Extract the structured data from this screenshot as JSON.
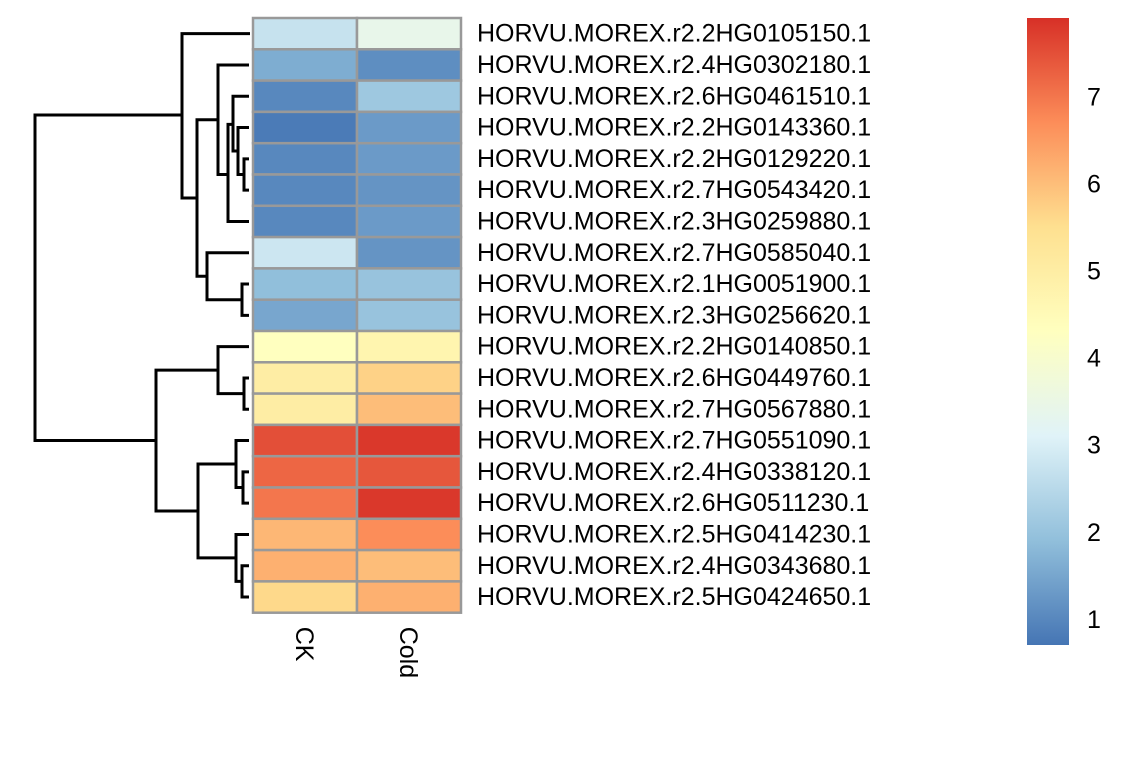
{
  "chart_data": {
    "type": "heatmap",
    "title": "",
    "columns": [
      "CK",
      "Cold"
    ],
    "rows": [
      "HORVU.MOREX.r2.2HG0105150.1",
      "HORVU.MOREX.r2.4HG0302180.1",
      "HORVU.MOREX.r2.6HG0461510.1",
      "HORVU.MOREX.r2.2HG0143360.1",
      "HORVU.MOREX.r2.2HG0129220.1",
      "HORVU.MOREX.r2.7HG0543420.1",
      "HORVU.MOREX.r2.3HG0259880.1",
      "HORVU.MOREX.r2.7HG0585040.1",
      "HORVU.MOREX.r2.1HG0051900.1",
      "HORVU.MOREX.r2.3HG0256620.1",
      "HORVU.MOREX.r2.2HG0140850.1",
      "HORVU.MOREX.r2.6HG0449760.1",
      "HORVU.MOREX.r2.7HG0567880.1",
      "HORVU.MOREX.r2.7HG0551090.1",
      "HORVU.MOREX.r2.4HG0338120.1",
      "HORVU.MOREX.r2.6HG0511230.1",
      "HORVU.MOREX.r2.5HG0414230.1",
      "HORVU.MOREX.r2.4HG0343680.1",
      "HORVU.MOREX.r2.5HG0424650.1"
    ],
    "values": [
      [
        2.7,
        3.4
      ],
      [
        1.6,
        1.1
      ],
      [
        1.0,
        2.1
      ],
      [
        0.8,
        1.3
      ],
      [
        1.0,
        1.3
      ],
      [
        1.0,
        1.2
      ],
      [
        1.0,
        1.3
      ],
      [
        2.8,
        1.2
      ],
      [
        1.9,
        2.0
      ],
      [
        1.5,
        2.0
      ],
      [
        4.3,
        4.7
      ],
      [
        5.0,
        5.7
      ],
      [
        5.0,
        6.0
      ],
      [
        7.5,
        7.8
      ],
      [
        7.2,
        7.4
      ],
      [
        7.0,
        7.8
      ],
      [
        6.1,
        6.7
      ],
      [
        6.2,
        6.0
      ],
      [
        5.6,
        6.2
      ]
    ],
    "color_scale": {
      "min": 0.7,
      "max": 7.9,
      "ticks": [
        1,
        2,
        3,
        4,
        5,
        6,
        7
      ],
      "colors": [
        "#4575b4",
        "#91bfdb",
        "#e0f3f8",
        "#ffffbf",
        "#fee090",
        "#fc8d59",
        "#d73027"
      ]
    },
    "cell_border_color": "#999999",
    "row_dendrogram": true,
    "legend_position": "right"
  }
}
